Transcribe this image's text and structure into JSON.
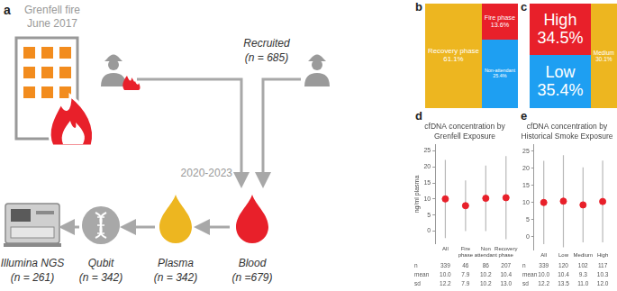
{
  "diagram": {
    "label": "a",
    "event": [
      "Grenfell fire",
      "June 2017"
    ],
    "recruited": [
      "Recruited",
      "(n = 685)"
    ],
    "period": "2020-2023",
    "steps": [
      {
        "name": "Blood",
        "count": "(n =679)"
      },
      {
        "name": "Plasma",
        "count": "(n = 342)"
      },
      {
        "name": "Qubit",
        "count": "(n = 342)"
      },
      {
        "name": "Illumina NGS",
        "count": "(n = 261)"
      }
    ]
  },
  "chart_data": [
    {
      "panel_label": "b",
      "type": "treemap",
      "categories": [
        "Recovery phase",
        "Fire phase",
        "Non-attendant"
      ],
      "values": [
        61.1,
        13.6,
        25.4
      ],
      "value_labels": [
        "61.1%",
        "13.6%",
        "25.4%"
      ],
      "colors": [
        "#EDB620",
        "#E8202A",
        "#1E9FF2"
      ]
    },
    {
      "panel_label": "c",
      "type": "treemap",
      "categories": [
        "High",
        "Low",
        "Medium"
      ],
      "values": [
        34.5,
        35.4,
        30.1
      ],
      "value_labels": [
        "34.5%",
        "35.4%",
        "30.1%"
      ],
      "colors": [
        "#E8202A",
        "#1E9FF2",
        "#EDB620"
      ]
    },
    {
      "panel_label": "d",
      "type": "dot",
      "title": [
        "cfDNA concentration by",
        "Grenfell Exposure"
      ],
      "y_label": "ng/ml plasma",
      "categories": [
        "All",
        "Fire phase",
        "Non attendant",
        "Recovery phase"
      ],
      "values": [
        10.0,
        7.9,
        10.2,
        10.4
      ],
      "value_labels": [
        "10.0",
        "7.9",
        "10.2",
        "10.4"
      ],
      "errors": [
        12.2,
        7.9,
        10.2,
        13.0
      ],
      "error_labels": [
        "12.2",
        "7.9",
        "10.2",
        "13.0"
      ],
      "n": [
        339,
        46,
        86,
        207
      ],
      "table_rows": [
        "n",
        "mean",
        "sd"
      ],
      "color": "#E8202A",
      "ylim": [
        -4,
        27
      ],
      "yticks": [
        0,
        5,
        10,
        15,
        20,
        25
      ],
      "grid": false
    },
    {
      "panel_label": "e",
      "type": "dot",
      "title": [
        "cfDNA concentration by",
        "Historical Smoke Exposure"
      ],
      "categories": [
        "All",
        "Low",
        "Medium",
        "High"
      ],
      "values": [
        10.0,
        10.4,
        9.3,
        10.3
      ],
      "value_labels": [
        "10.0",
        "10.4",
        "9.3",
        "10.3"
      ],
      "errors": [
        12.2,
        13.5,
        11.0,
        12.0
      ],
      "error_labels": [
        "12.2",
        "13.5",
        "11.0",
        "12.0"
      ],
      "n": [
        339,
        120,
        102,
        117
      ],
      "table_rows": [
        "n",
        "mean",
        "sd"
      ],
      "color": "#E8202A",
      "ylim": [
        -4,
        27
      ],
      "yticks": [
        0,
        5,
        10,
        15,
        20,
        25
      ],
      "grid": false
    }
  ]
}
